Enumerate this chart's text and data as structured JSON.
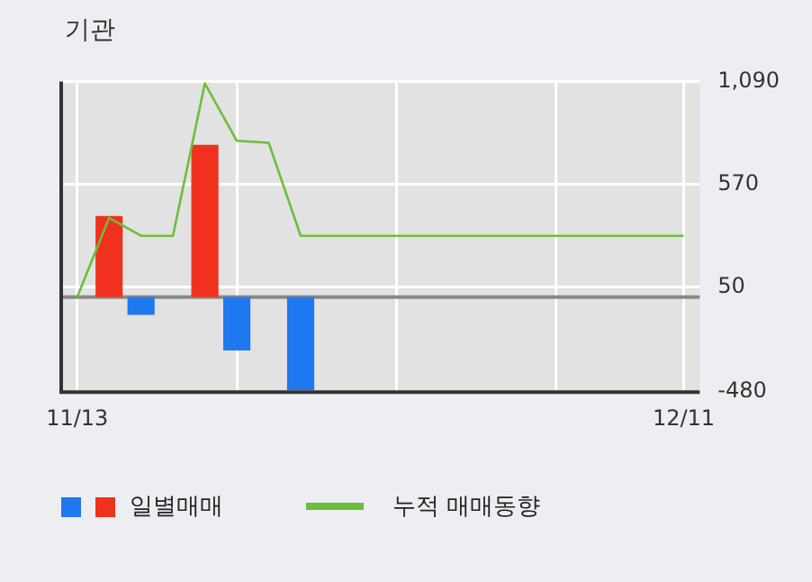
{
  "chart_data": {
    "type": "bar",
    "title": "기관",
    "categories": [
      "11/13",
      null,
      null,
      null,
      null,
      null,
      null,
      null,
      null,
      null,
      null,
      null,
      null,
      null,
      null,
      null,
      null,
      null,
      null,
      "12/11"
    ],
    "series": [
      {
        "name": "일별매매",
        "colors": [
          "#f0311e",
          "#f0311e",
          "#1f78f0",
          "#f0311e",
          "#f0311e",
          "#1f78f0",
          "#1f78f0",
          "#1f78f0",
          "#f0311e",
          "#f0311e",
          "#f0311e",
          "#f0311e",
          "#f0311e",
          "#f0311e",
          "#f0311e",
          "#f0311e",
          "#f0311e",
          "#f0311e",
          "#f0311e",
          "#f0311e"
        ],
        "values": [
          0,
          410,
          -90,
          0,
          770,
          -270,
          0,
          -470,
          0,
          0,
          0,
          0,
          0,
          0,
          0,
          0,
          0,
          0,
          0,
          0
        ]
      },
      {
        "type": "line",
        "name": "누적 매매동향",
        "color": "#6bbf3a",
        "values": [
          0,
          400,
          310,
          310,
          1080,
          790,
          780,
          310,
          310,
          310,
          310,
          310,
          310,
          310,
          310,
          310,
          310,
          310,
          310,
          310
        ]
      }
    ],
    "ylim": [
      -480,
      1090
    ],
    "yticks": [
      {
        "value": 1090,
        "label": "1,090"
      },
      570,
      50,
      -480
    ],
    "ref_lines": [
      {
        "axis": "y",
        "value": 0,
        "color": "#888888"
      }
    ],
    "grid": true,
    "legend": "bottom",
    "marker": "none"
  }
}
